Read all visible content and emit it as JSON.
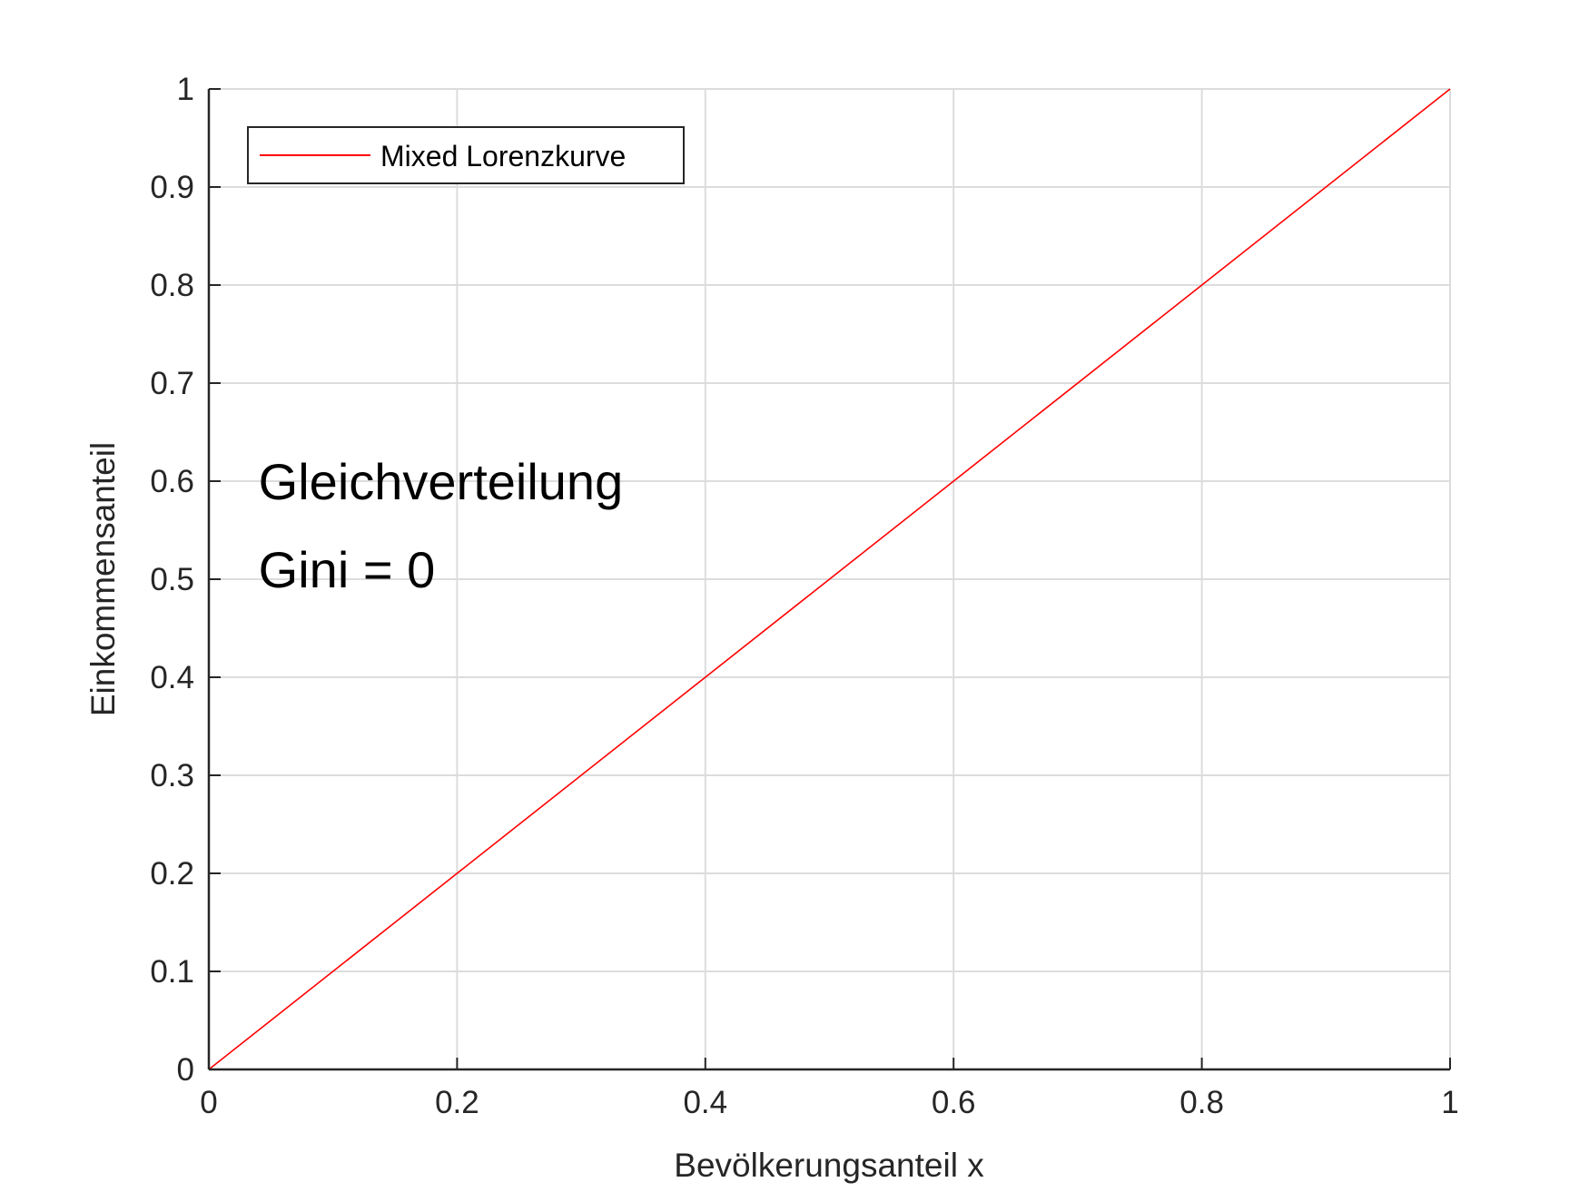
{
  "chart_data": {
    "type": "line",
    "title": "",
    "xlabel": "Bevölkerungsanteil x",
    "ylabel": "Einkommensanteil",
    "xlim": [
      0,
      1
    ],
    "ylim": [
      0,
      1
    ],
    "grid": true,
    "x_ticks": [
      "0",
      "0.2",
      "0.4",
      "0.6",
      "0.8",
      "1"
    ],
    "x_tick_values": [
      0,
      0.2,
      0.4,
      0.6,
      0.8,
      1
    ],
    "y_ticks": [
      "0",
      "0.1",
      "0.2",
      "0.3",
      "0.4",
      "0.5",
      "0.6",
      "0.7",
      "0.8",
      "0.9",
      "1"
    ],
    "y_tick_values": [
      0,
      0.1,
      0.2,
      0.3,
      0.4,
      0.5,
      0.6,
      0.7,
      0.8,
      0.9,
      1
    ],
    "legend_placement": "top-left",
    "series": [
      {
        "name": "Mixed Lorenzkurve",
        "color": "#ff0000",
        "x": [
          0,
          0.2,
          0.4,
          0.6,
          0.8,
          1
        ],
        "y": [
          0,
          0.2,
          0.4,
          0.6,
          0.8,
          1
        ]
      }
    ],
    "annotations": [
      {
        "text": "Gleichverteilung",
        "x": 0.04,
        "y": 0.6
      },
      {
        "text": "Gini = 0",
        "x": 0.04,
        "y": 0.51
      }
    ]
  }
}
